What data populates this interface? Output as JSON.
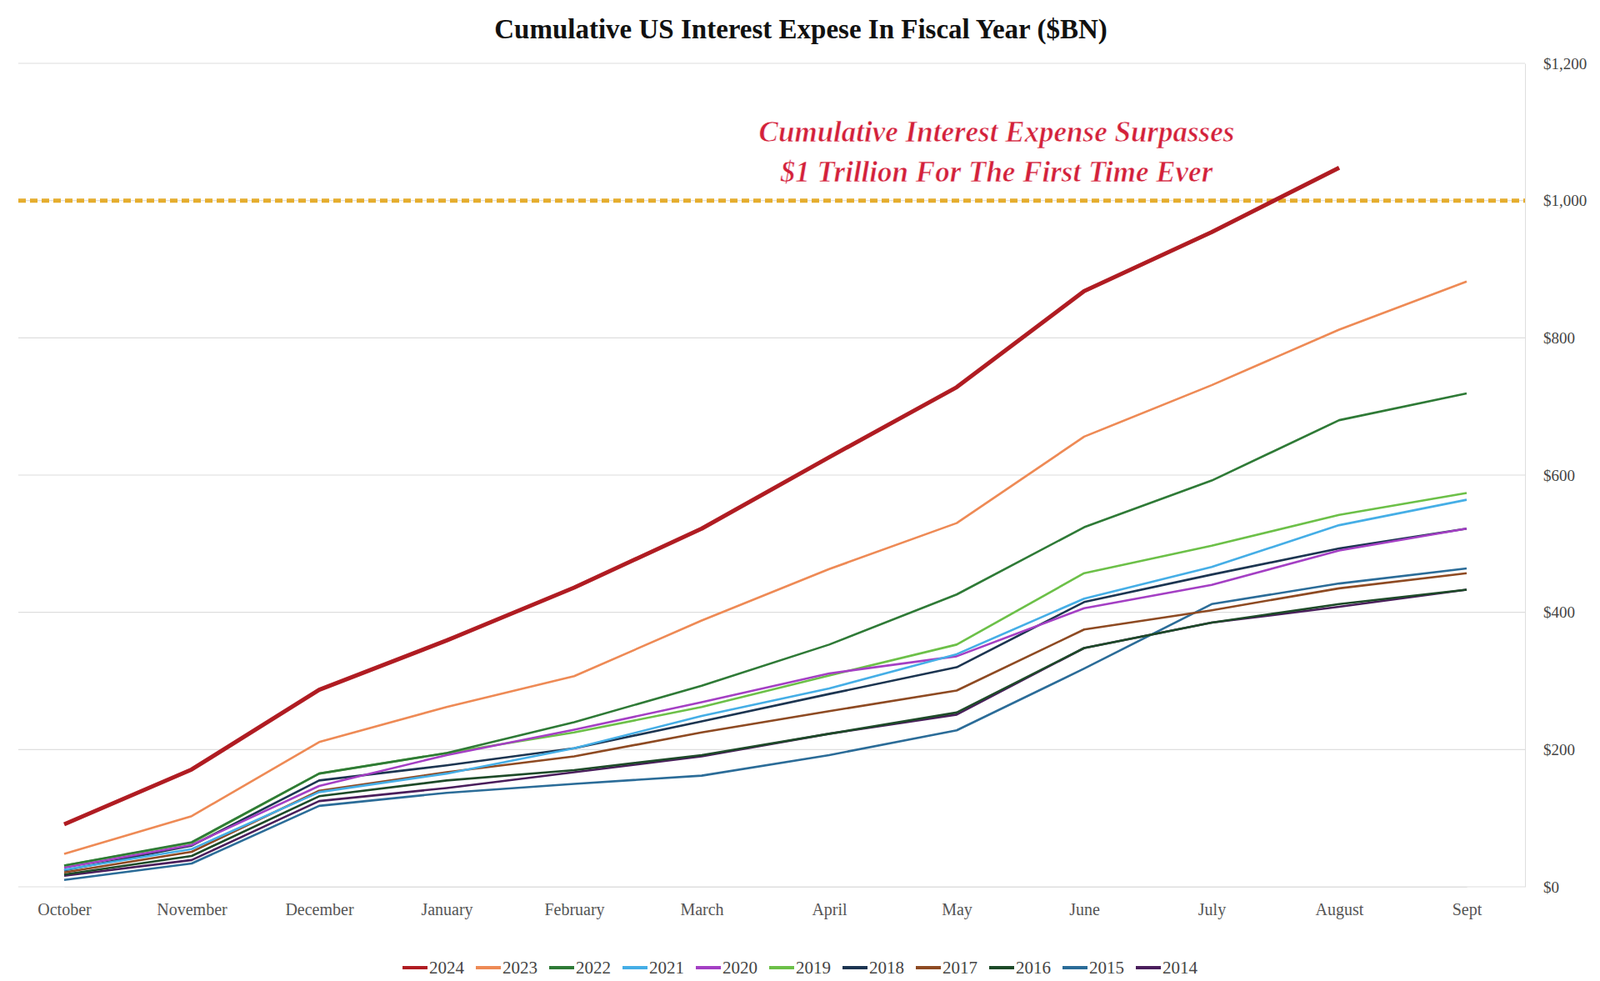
{
  "chart_data": {
    "type": "line",
    "title": "Cumulative US Interest Expese In Fiscal Year ($BN)",
    "annotation": [
      "Cumulative Interest Expense Surpasses",
      "$1 Trillion For The First Time Ever"
    ],
    "reference_line": 1000,
    "categories": [
      "October",
      "November",
      "December",
      "January",
      "February",
      "March",
      "April",
      "May",
      "June",
      "July",
      "August",
      "Sept"
    ],
    "series": [
      {
        "name": "2024",
        "color": "#b01c22",
        "values": [
          91,
          171,
          287,
          359,
          436,
          522,
          626,
          728,
          868,
          954,
          1048,
          null
        ]
      },
      {
        "name": "2023",
        "color": "#ee8a55",
        "values": [
          48,
          103,
          211,
          262,
          307,
          388,
          463,
          530,
          656,
          731,
          812,
          882
        ]
      },
      {
        "name": "2022",
        "color": "#2e7a36",
        "values": [
          31,
          65,
          165,
          195,
          240,
          293,
          353,
          426,
          524,
          592,
          680,
          719
        ]
      },
      {
        "name": "2021",
        "color": "#45aee6",
        "values": [
          25,
          55,
          138,
          165,
          202,
          249,
          289,
          339,
          420,
          466,
          527,
          564
        ]
      },
      {
        "name": "2020",
        "color": "#a43fc4",
        "values": [
          28,
          61,
          147,
          192,
          229,
          269,
          311,
          336,
          406,
          440,
          490,
          522
        ]
      },
      {
        "name": "2019",
        "color": "#6cc048",
        "values": [
          31,
          64,
          165,
          195,
          225,
          262,
          308,
          353,
          457,
          497,
          542,
          574
        ]
      },
      {
        "name": "2018",
        "color": "#1c3551",
        "values": [
          24,
          60,
          155,
          177,
          202,
          241,
          281,
          320,
          415,
          455,
          493,
          522
        ]
      },
      {
        "name": "2017",
        "color": "#8e4a22",
        "values": [
          21,
          51,
          140,
          167,
          190,
          225,
          256,
          286,
          375,
          403,
          435,
          457
        ]
      },
      {
        "name": "2016",
        "color": "#1d4a28",
        "values": [
          18,
          45,
          132,
          155,
          170,
          192,
          223,
          254,
          348,
          385,
          412,
          433
        ]
      },
      {
        "name": "2015",
        "color": "#2b6c98",
        "values": [
          10,
          34,
          118,
          137,
          150,
          162,
          192,
          228,
          318,
          412,
          442,
          464
        ]
      },
      {
        "name": "2014",
        "color": "#4a1e5c",
        "values": [
          16,
          39,
          125,
          144,
          167,
          190,
          223,
          251,
          348,
          385,
          408,
          433
        ]
      }
    ],
    "ylim": [
      0,
      1200
    ],
    "yticks": [
      {
        "value": 0,
        "label": "$0"
      },
      {
        "value": 200,
        "label": "$200"
      },
      {
        "value": 400,
        "label": "$400"
      },
      {
        "value": 600,
        "label": "$600"
      },
      {
        "value": 800,
        "label": "$800"
      },
      {
        "value": 1000,
        "label": "$1,000"
      },
      {
        "value": 1200,
        "label": "$1,200"
      }
    ],
    "grid": true,
    "legend": "bottom"
  }
}
